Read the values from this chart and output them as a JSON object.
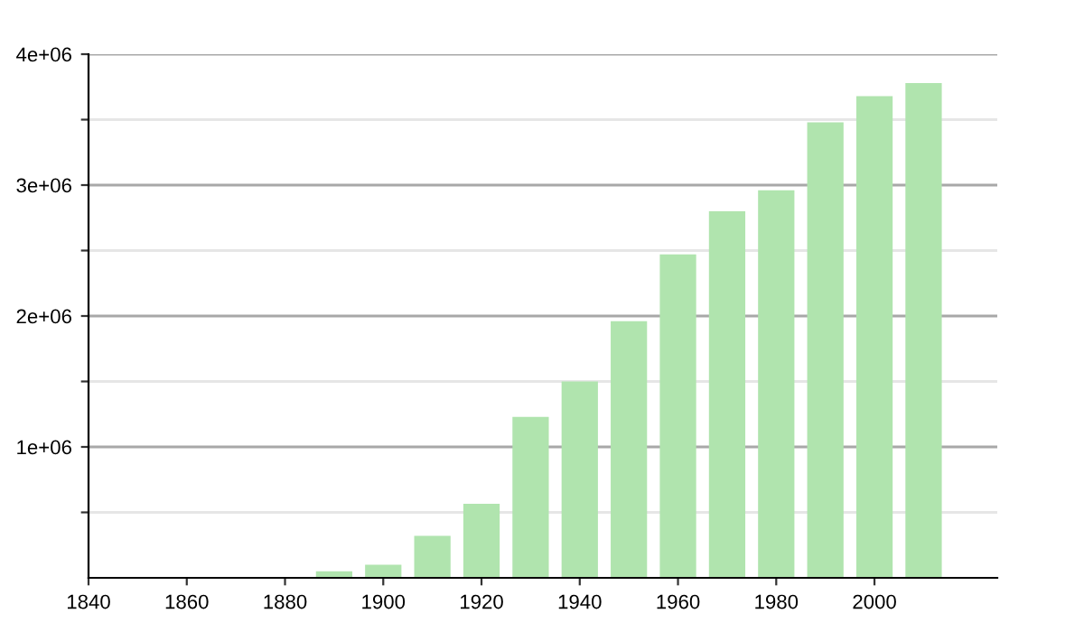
{
  "chart_data": {
    "type": "bar",
    "x": [
      1890,
      1900,
      1910,
      1920,
      1930,
      1940,
      1950,
      1960,
      1970,
      1980,
      1990,
      2000,
      2010
    ],
    "values": [
      50000,
      100000,
      320000,
      565000,
      1230000,
      1500000,
      1960000,
      2470000,
      2800000,
      2960000,
      3480000,
      3680000,
      3780000
    ],
    "color": "#b0e4ae",
    "xlim": [
      1840,
      2025
    ],
    "xticks": [
      1840,
      1860,
      1880,
      1900,
      1920,
      1940,
      1960,
      1980,
      2000
    ],
    "ylim": [
      0,
      4000000
    ],
    "yticks": [
      {
        "value": 500000,
        "label": null
      },
      {
        "value": 1000000,
        "label": "1e+06"
      },
      {
        "value": 1500000,
        "label": null
      },
      {
        "value": 2000000,
        "label": "2e+06"
      },
      {
        "value": 2500000,
        "label": null
      },
      {
        "value": 3000000,
        "label": "3e+06"
      },
      {
        "value": 3500000,
        "label": null
      },
      {
        "value": 4000000,
        "label": "4e+06"
      }
    ],
    "grid": "y",
    "legend": false
  }
}
